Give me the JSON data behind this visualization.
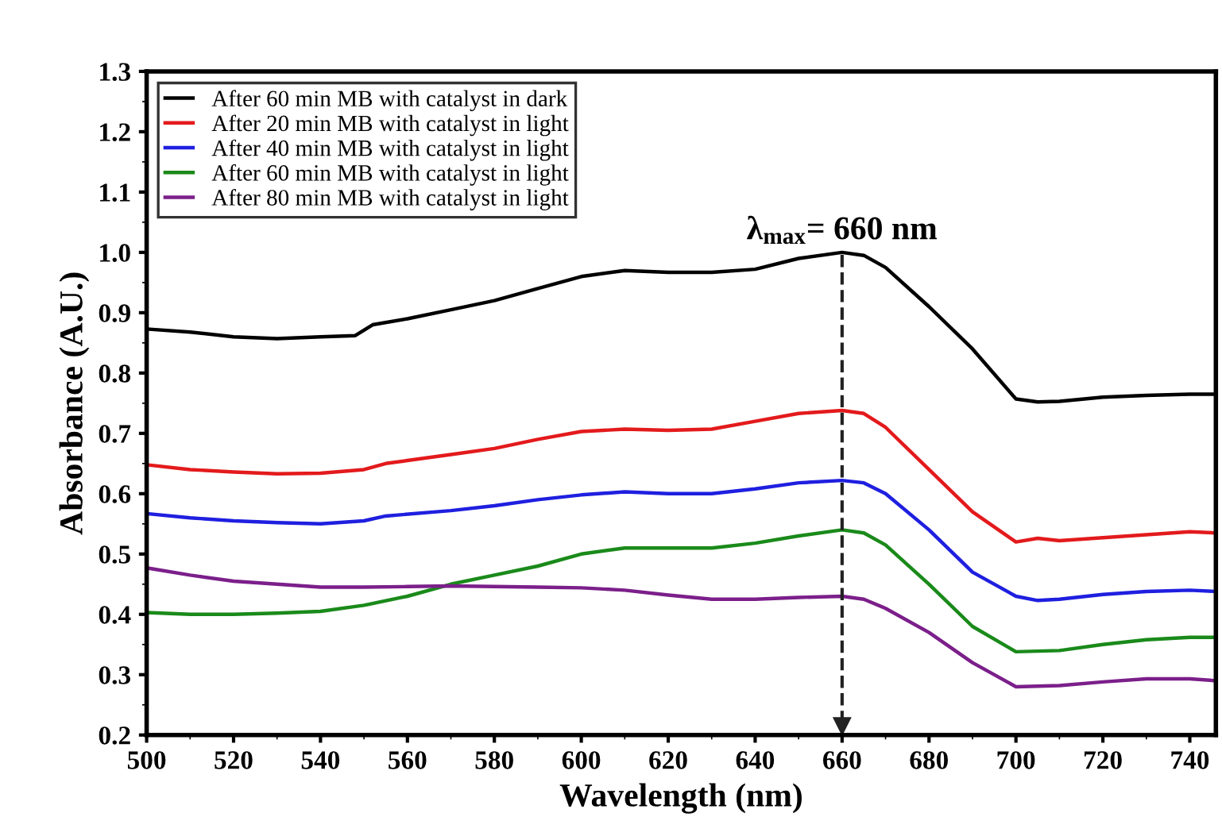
{
  "chart_data": {
    "type": "line",
    "xlabel": "Wavelength (nm)",
    "ylabel": "Absorbance (A.U.)",
    "xlim": [
      500,
      746
    ],
    "ylim": [
      0.2,
      1.3
    ],
    "xticks": [
      500,
      520,
      540,
      560,
      580,
      600,
      620,
      640,
      660,
      680,
      700,
      720,
      740
    ],
    "yticks": [
      {
        "value": 0.2,
        "label": "0.2"
      },
      {
        "value": 0.3,
        "label": "0.3"
      },
      {
        "value": 0.4,
        "label": "0.4"
      },
      {
        "value": 0.5,
        "label": "0.5"
      },
      {
        "value": 0.6,
        "label": "0.6"
      },
      {
        "value": 0.7,
        "label": "0.7"
      },
      {
        "value": 0.8,
        "label": "0.8"
      },
      {
        "value": 0.9,
        "label": "0.9"
      },
      {
        "value": 1.0,
        "label": "1.0"
      },
      {
        "value": 1.1,
        "label": "1.1"
      },
      {
        "value": 1.2,
        "label": "1.2"
      },
      {
        "value": 1.3,
        "label": "1.3"
      }
    ],
    "grid": false,
    "legend": "top left",
    "marker": "none",
    "line_style": "solid",
    "ref_lines": [
      {
        "axis": "x",
        "value": 660,
        "label": "λ$_{max}$= 660 nm",
        "line_style": "dashed",
        "color": "#222222"
      }
    ],
    "series": [
      {
        "name": "After 60 min MB with catalyst in dark",
        "color": "#000000",
        "x": [
          500,
          510,
          520,
          530,
          540,
          548,
          552,
          560,
          570,
          580,
          590,
          600,
          610,
          620,
          630,
          640,
          650,
          660,
          665,
          670,
          680,
          690,
          700,
          705,
          710,
          720,
          730,
          740,
          746
        ],
        "values": [
          0.873,
          0.868,
          0.86,
          0.857,
          0.86,
          0.862,
          0.88,
          0.89,
          0.905,
          0.92,
          0.94,
          0.96,
          0.97,
          0.967,
          0.967,
          0.972,
          0.99,
          1.0,
          0.995,
          0.975,
          0.91,
          0.84,
          0.757,
          0.752,
          0.753,
          0.76,
          0.763,
          0.765,
          0.765
        ]
      },
      {
        "name": "After 20 min MB with catalyst in light",
        "color": "#e31a1c",
        "x": [
          500,
          510,
          520,
          530,
          540,
          550,
          555,
          560,
          570,
          580,
          590,
          600,
          610,
          620,
          630,
          640,
          650,
          660,
          665,
          670,
          680,
          690,
          700,
          705,
          710,
          720,
          730,
          740,
          746
        ],
        "values": [
          0.648,
          0.64,
          0.636,
          0.633,
          0.634,
          0.64,
          0.65,
          0.655,
          0.665,
          0.675,
          0.69,
          0.703,
          0.707,
          0.705,
          0.707,
          0.72,
          0.733,
          0.738,
          0.733,
          0.71,
          0.64,
          0.57,
          0.52,
          0.526,
          0.522,
          0.527,
          0.532,
          0.537,
          0.535
        ]
      },
      {
        "name": "After 40 min MB with catalyst in light",
        "color": "#1f1fe0",
        "x": [
          500,
          510,
          520,
          530,
          540,
          550,
          555,
          570,
          580,
          590,
          600,
          610,
          620,
          630,
          640,
          650,
          660,
          665,
          670,
          680,
          690,
          700,
          705,
          710,
          720,
          730,
          740,
          746
        ],
        "values": [
          0.567,
          0.56,
          0.555,
          0.552,
          0.55,
          0.555,
          0.563,
          0.572,
          0.58,
          0.59,
          0.598,
          0.603,
          0.6,
          0.6,
          0.608,
          0.618,
          0.622,
          0.618,
          0.6,
          0.54,
          0.47,
          0.43,
          0.423,
          0.425,
          0.433,
          0.438,
          0.44,
          0.438
        ]
      },
      {
        "name": "After 60 min MB with catalyst in light",
        "color": "#1a8a1a",
        "x": [
          500,
          510,
          520,
          530,
          540,
          550,
          560,
          570,
          580,
          590,
          600,
          610,
          620,
          630,
          640,
          650,
          660,
          665,
          670,
          680,
          690,
          700,
          710,
          720,
          730,
          740,
          746
        ],
        "values": [
          0.403,
          0.4,
          0.4,
          0.402,
          0.405,
          0.415,
          0.43,
          0.45,
          0.465,
          0.48,
          0.5,
          0.51,
          0.51,
          0.51,
          0.518,
          0.53,
          0.54,
          0.535,
          0.515,
          0.45,
          0.38,
          0.338,
          0.34,
          0.35,
          0.358,
          0.362,
          0.362
        ]
      },
      {
        "name": "After 80 min MB with catalyst in light",
        "color": "#7b1f8a",
        "x": [
          500,
          510,
          520,
          530,
          540,
          550,
          560,
          570,
          580,
          590,
          600,
          610,
          620,
          630,
          640,
          650,
          660,
          665,
          670,
          680,
          690,
          700,
          710,
          720,
          730,
          740,
          746
        ],
        "values": [
          0.477,
          0.465,
          0.455,
          0.45,
          0.445,
          0.445,
          0.446,
          0.447,
          0.446,
          0.445,
          0.444,
          0.44,
          0.432,
          0.425,
          0.425,
          0.428,
          0.43,
          0.425,
          0.41,
          0.37,
          0.32,
          0.28,
          0.282,
          0.288,
          0.293,
          0.293,
          0.29
        ]
      }
    ]
  }
}
